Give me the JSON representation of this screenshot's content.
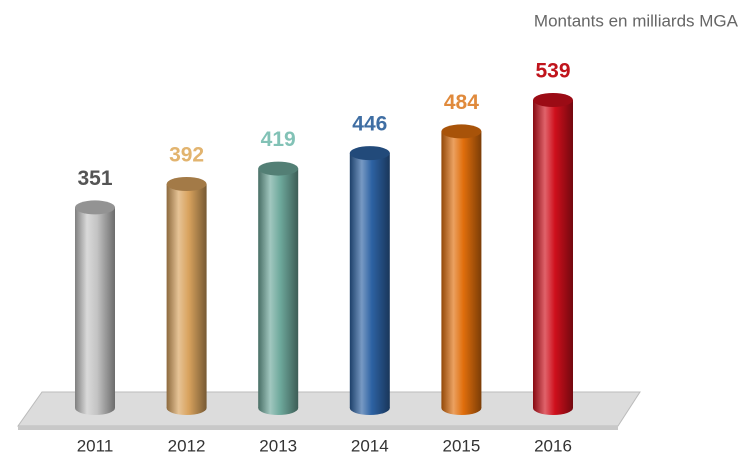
{
  "chart_data": {
    "type": "bar",
    "subtitle": "Montants en milliards MGA",
    "categories": [
      "2011",
      "2012",
      "2013",
      "2014",
      "2015",
      "2016"
    ],
    "values": [
      351,
      392,
      419,
      446,
      484,
      539
    ],
    "colors": [
      "#c4c4c4",
      "#d9a35e",
      "#6ea99c",
      "#2d62a3",
      "#e06e0c",
      "#cf0f1c"
    ],
    "label_colors": [
      "#555555",
      "#e2b46f",
      "#82c2b6",
      "#3f6ea3",
      "#e08a3c",
      "#c0141c"
    ]
  }
}
